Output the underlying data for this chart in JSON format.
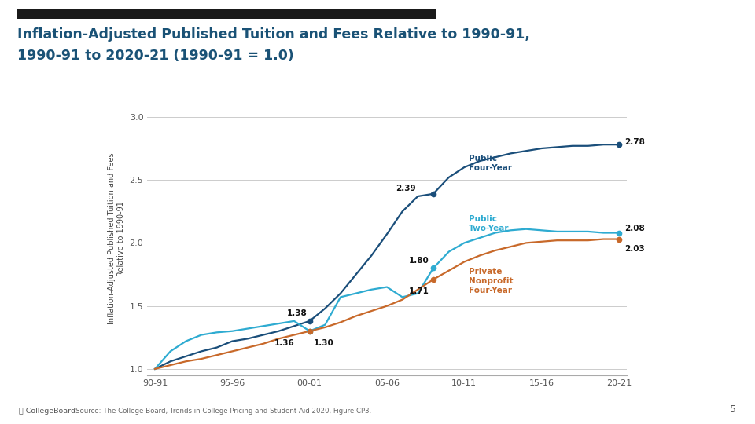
{
  "title_line1": "Inflation-Adjusted Published Tuition and Fees Relative to 1990-91,",
  "title_line2": "1990-91 to 2020-21 (1990-91 = 1.0)",
  "title_color": "#1a5276",
  "ylabel": "Inflation-Adjusted Published Tuition and Fees\nRelative to 1990-91",
  "source": "Source: The College Board, Trends in College Pricing and Student Aid 2020, Figure CP3.",
  "page_num": "5",
  "background_color": "#ffffff",
  "ylim": [
    0.95,
    3.1
  ],
  "yticks": [
    1.0,
    1.5,
    2.0,
    2.5,
    3.0
  ],
  "xtick_labels": [
    "90-91",
    "95-96",
    "00-01",
    "05-06",
    "10-11",
    "15-16",
    "20-21"
  ],
  "pub4_color": "#1a4e7a",
  "pub2_color": "#2eabd1",
  "priv_color": "#c8692a",
  "header_bar_color": "#1a1a1a",
  "pub4_label_color": "#1a4e7a",
  "pub2_label_color": "#2eabd1",
  "priv_label_color": "#c8692a"
}
